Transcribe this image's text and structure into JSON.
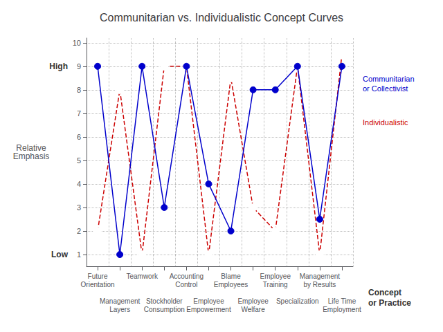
{
  "chart_data": {
    "type": "line",
    "title": "Communitarian vs. Individualistic Concept Curves",
    "xlabel": "Concept\nor Practice",
    "ylabel": "Relative\nEmphasis",
    "annotations": [
      {
        "text": "Low",
        "y": 1
      },
      {
        "text": "High",
        "y": 9
      }
    ],
    "categories": [
      "Future\nOrientation",
      "Management\nLayers",
      "Teamwork",
      "Stockholder\nConsumption",
      "Accounting\nControl",
      "Employee\nEmpowerment",
      "Blame\nEmployees",
      "Employee\nWelfare",
      "Employee\nTraining",
      "Specialization",
      "Management\nby Results",
      "Life Time\nEmployment"
    ],
    "series": [
      {
        "name": "Communitarian\nor Collectivist",
        "color": "#0000cc",
        "line_style": "solid",
        "marker": "circle",
        "values": [
          9,
          1,
          9,
          3,
          9,
          4,
          2,
          8,
          8,
          9,
          2.5,
          9
        ]
      },
      {
        "name": "Individualistic",
        "color": "#cc0000",
        "line_style": "dashed",
        "marker": "open circle",
        "values": [
          2,
          8,
          1,
          9,
          9,
          1,
          8.5,
          3,
          2,
          9,
          1,
          9.5
        ]
      }
    ],
    "ylim": [
      0.5,
      10.2
    ],
    "yticks": [
      1,
      2,
      3,
      4,
      5,
      6,
      7,
      8,
      9,
      10
    ],
    "grid": true
  }
}
